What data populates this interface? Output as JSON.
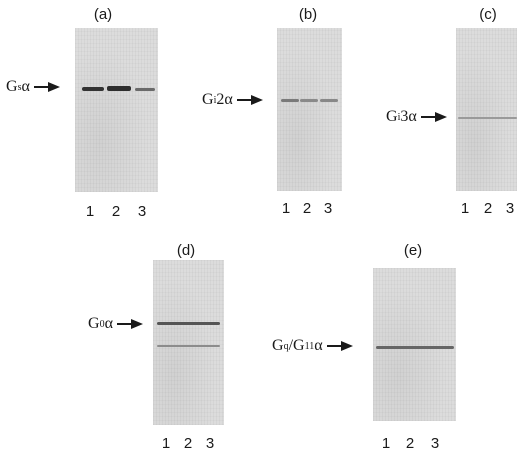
{
  "panels": [
    {
      "label": "(a)",
      "protein_prefix": "G",
      "protein_sub": "s",
      "protein_suffix": "α",
      "lanes": [
        "1",
        "2",
        "3"
      ]
    },
    {
      "label": "(b)",
      "protein_prefix": "G",
      "protein_sub": "i",
      "protein_suffix": "2α",
      "lanes": [
        "1",
        "2",
        "3"
      ]
    },
    {
      "label": "(c)",
      "protein_prefix": "G",
      "protein_sub": "i",
      "protein_suffix": "3α",
      "lanes": [
        "1",
        "2",
        "3"
      ]
    },
    {
      "label": "(d)",
      "protein_prefix": "G",
      "protein_sub": "0",
      "protein_suffix": "α",
      "lanes": [
        "1",
        "2",
        "3"
      ]
    },
    {
      "label": "(e)",
      "protein_prefix": "G",
      "protein_sub": "q",
      "protein_mid": "/G",
      "protein_sub2": "11",
      "protein_suffix": "α",
      "lanes": [
        "1",
        "2",
        "3"
      ]
    }
  ],
  "colors": {
    "band": "#4a4a4a",
    "gel": "#dcdcdc",
    "arrow": "#1a1a1a"
  }
}
